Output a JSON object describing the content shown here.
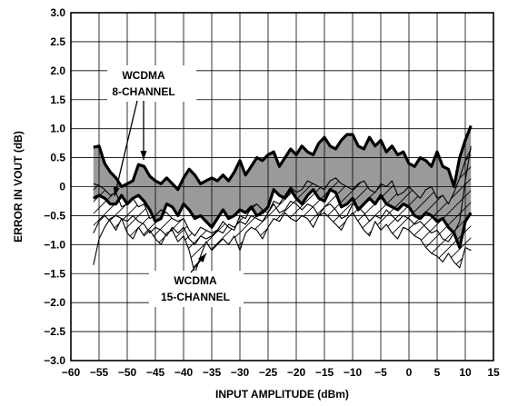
{
  "chart_data": {
    "type": "line",
    "title": "",
    "xlabel": "INPUT AMPLITUDE (dBm)",
    "ylabel": "ERROR IN VOUT (dB)",
    "xlim": [
      -60,
      15
    ],
    "ylim": [
      -3.0,
      3.0
    ],
    "x_ticks": [
      -60,
      -55,
      -50,
      -45,
      -40,
      -35,
      -30,
      -25,
      -20,
      -15,
      -10,
      -5,
      0,
      5,
      10,
      15
    ],
    "x_tick_labels": [
      "−60",
      "−55",
      "−50",
      "−45",
      "−40",
      "−35",
      "−30",
      "−25",
      "−20",
      "−15",
      "−10",
      "−5",
      "0",
      "5",
      "10",
      "15"
    ],
    "y_ticks": [
      3.0,
      2.5,
      2.0,
      1.5,
      1.0,
      0.5,
      0,
      -0.5,
      -1.0,
      -1.5,
      -2.0,
      -2.5,
      -3.0
    ],
    "y_tick_labels": [
      "3.0",
      "2.5",
      "2.0",
      "1.5",
      "1.0",
      "0.5",
      "0",
      "−0.5",
      "−1.0",
      "−1.5",
      "−2.0",
      "−2.5",
      "−3.0"
    ],
    "grid": true,
    "legend": "none",
    "annotations": [
      {
        "line1": "WCDMA",
        "line2": "8-CHANNEL"
      },
      {
        "line1": "WCDMA",
        "line2": "15-CHANNEL"
      }
    ],
    "series": [
      {
        "group": "8-channel",
        "style": "thick",
        "x": [
          -56,
          -55,
          -54,
          -53,
          -52,
          -51,
          -50,
          -49,
          -48,
          -47,
          -46,
          -45,
          -44,
          -43,
          -42,
          -41,
          -40,
          -39,
          -38,
          -37,
          -36,
          -35,
          -34,
          -33,
          -32,
          -31,
          -30,
          -29,
          -28,
          -27,
          -26,
          -25,
          -24,
          -23,
          -22,
          -21,
          -20,
          -19,
          -18,
          -17,
          -16,
          -15,
          -14,
          -13,
          -12,
          -11,
          -10,
          -9,
          -8,
          -7,
          -6,
          -5,
          -4,
          -3,
          -2,
          -1,
          0,
          1,
          2,
          3,
          4,
          5,
          6,
          7,
          8,
          9,
          10,
          11
        ],
        "y": [
          0.68,
          0.7,
          0.4,
          0.25,
          0.15,
          0.0,
          0.05,
          0.1,
          0.38,
          0.35,
          0.18,
          0.1,
          0.05,
          0.15,
          0.05,
          -0.05,
          0.15,
          0.3,
          0.2,
          0.05,
          0.1,
          0.15,
          0.1,
          0.2,
          0.1,
          0.25,
          0.45,
          0.2,
          0.35,
          0.5,
          0.45,
          0.55,
          0.6,
          0.35,
          0.5,
          0.65,
          0.55,
          0.7,
          0.6,
          0.55,
          0.75,
          0.85,
          0.7,
          0.65,
          0.8,
          0.9,
          0.9,
          0.7,
          0.65,
          0.85,
          0.7,
          0.8,
          0.6,
          0.7,
          0.55,
          0.6,
          0.4,
          0.35,
          0.5,
          0.45,
          0.35,
          0.6,
          0.35,
          0.3,
          0.0,
          0.5,
          0.8,
          1.05
        ]
      },
      {
        "group": "8-channel",
        "style": "thick",
        "x": [
          -56,
          -55,
          -54,
          -53,
          -52,
          -51,
          -50,
          -49,
          -48,
          -47,
          -46,
          -45,
          -44,
          -43,
          -42,
          -41,
          -40,
          -39,
          -38,
          -37,
          -36,
          -35,
          -34,
          -33,
          -32,
          -31,
          -30,
          -29,
          -28,
          -27,
          -26,
          -25,
          -24,
          -23,
          -22,
          -21,
          -20,
          -19,
          -18,
          -17,
          -16,
          -15,
          -14,
          -13,
          -12,
          -11,
          -10,
          -9,
          -8,
          -7,
          -6,
          -5,
          -4,
          -3,
          -2,
          -1,
          0,
          1,
          2,
          3,
          4,
          5,
          6,
          7,
          8,
          9,
          10,
          11
        ],
        "y": [
          -0.2,
          -0.15,
          -0.2,
          -0.3,
          -0.3,
          -0.15,
          -0.3,
          -0.2,
          -0.15,
          -0.25,
          -0.4,
          -0.6,
          -0.55,
          -0.3,
          -0.35,
          -0.5,
          -0.3,
          -0.4,
          -0.55,
          -0.5,
          -0.6,
          -0.7,
          -0.55,
          -0.4,
          -0.55,
          -0.5,
          -0.4,
          -0.45,
          -0.35,
          -0.5,
          -0.45,
          -0.35,
          -0.05,
          -0.15,
          -0.2,
          -0.05,
          -0.2,
          -0.3,
          -0.15,
          -0.05,
          -0.2,
          -0.25,
          -0.05,
          -0.1,
          -0.35,
          -0.3,
          -0.2,
          -0.4,
          -0.3,
          -0.2,
          -0.3,
          -0.15,
          -0.3,
          -0.35,
          -0.4,
          -0.3,
          -0.35,
          -0.5,
          -0.55,
          -0.45,
          -0.5,
          -0.6,
          -0.55,
          -0.7,
          -0.8,
          -1.05,
          -0.6,
          -0.45
        ]
      },
      {
        "group": "15-channel",
        "style": "thin",
        "x": [
          -56,
          -55,
          -54,
          -53,
          -52,
          -51,
          -50,
          -49,
          -48,
          -47,
          -46,
          -45,
          -44,
          -43,
          -42,
          -41,
          -40,
          -39,
          -38,
          -37,
          -36,
          -35,
          -34,
          -33,
          -32,
          -31,
          -30,
          -29,
          -28,
          -27,
          -26,
          -25,
          -24,
          -23,
          -22,
          -21,
          -20,
          -19,
          -18,
          -17,
          -16,
          -15,
          -14,
          -13,
          -12,
          -11,
          -10,
          -9,
          -8,
          -7,
          -6,
          -5,
          -4,
          -3,
          -2,
          -1,
          0,
          1,
          2,
          3,
          4,
          5,
          6,
          7,
          8,
          9,
          10,
          11
        ],
        "y": [
          0.05,
          0.02,
          -0.05,
          -0.15,
          -0.1,
          -0.35,
          -0.3,
          -0.2,
          -0.35,
          -0.3,
          -0.55,
          -0.5,
          -0.4,
          -0.45,
          -0.55,
          -0.6,
          -0.55,
          -0.75,
          -0.85,
          -0.7,
          -0.75,
          -0.8,
          -0.75,
          -0.6,
          -0.7,
          -0.75,
          -0.5,
          -0.55,
          -0.35,
          -0.3,
          -0.4,
          -0.45,
          -0.25,
          -0.3,
          -0.15,
          0.0,
          -0.1,
          -0.05,
          0.1,
          0.05,
          0.0,
          -0.05,
          0.1,
          0.15,
          0.05,
          0.0,
          -0.05,
          0.05,
          0.1,
          -0.05,
          -0.1,
          0.05,
          0.0,
          0.1,
          -0.15,
          -0.1,
          0.0,
          -0.1,
          -0.2,
          -0.05,
          0.0,
          -0.2,
          -0.15,
          -0.3,
          -0.1,
          0.15,
          0.45,
          0.65
        ]
      },
      {
        "group": "15-channel",
        "style": "thin",
        "x": [
          -56,
          -55,
          -54,
          -53,
          -52,
          -51,
          -50,
          -49,
          -48,
          -47,
          -46,
          -45,
          -44,
          -43,
          -42,
          -41,
          -40,
          -39,
          -38,
          -37,
          -36,
          -35,
          -34,
          -33,
          -32,
          -31,
          -30,
          -29,
          -28,
          -27,
          -26,
          -25,
          -24,
          -23,
          -22,
          -21,
          -20,
          -19,
          -18,
          -17,
          -16,
          -15,
          -14,
          -13,
          -12,
          -11,
          -10,
          -9,
          -8,
          -7,
          -6,
          -5,
          -4,
          -3,
          -2,
          -1,
          0,
          1,
          2,
          3,
          4,
          5,
          6,
          7,
          8,
          9,
          10,
          11
        ],
        "y": [
          -0.8,
          -0.6,
          -0.5,
          -0.6,
          -0.75,
          -0.55,
          -0.8,
          -0.9,
          -0.7,
          -0.85,
          -0.75,
          -0.9,
          -1.0,
          -0.8,
          -0.75,
          -0.95,
          -0.85,
          -1.1,
          -1.5,
          -1.2,
          -0.95,
          -1.1,
          -1.0,
          -0.9,
          -1.0,
          -0.85,
          -1.1,
          -0.8,
          -0.7,
          -0.75,
          -0.9,
          -0.7,
          -0.55,
          -0.6,
          -0.45,
          -0.55,
          -0.6,
          -0.5,
          -0.55,
          -0.7,
          -0.5,
          -0.45,
          -0.55,
          -0.65,
          -0.75,
          -0.55,
          -0.45,
          -0.6,
          -0.75,
          -0.85,
          -0.6,
          -0.75,
          -0.65,
          -0.8,
          -0.9,
          -0.7,
          -0.75,
          -0.85,
          -0.9,
          -1.05,
          -1.15,
          -1.2,
          -1.3,
          -1.15,
          -1.3,
          -1.4,
          -1.05,
          -1.1
        ]
      },
      {
        "group": "15-channel",
        "style": "thin",
        "x": [
          -56,
          -55,
          -54,
          -53,
          -52,
          -51,
          -50,
          -49,
          -48,
          -47,
          -46,
          -45,
          -44,
          -43,
          -42,
          -41,
          -40,
          -39,
          -38,
          -37,
          -36,
          -35,
          -34,
          -33,
          -32,
          -31,
          -30,
          -29,
          -28,
          -27,
          -26,
          -25,
          -24,
          -23,
          -22,
          -21,
          -20,
          -19,
          -18,
          -17,
          -16,
          -15,
          -14,
          -13,
          -12,
          -11,
          -10,
          -9,
          -8,
          -7,
          -6,
          -5,
          -4,
          -3,
          -2,
          -1,
          0,
          1,
          2,
          3,
          4,
          5,
          6,
          7,
          8,
          9,
          10,
          11
        ],
        "y": [
          -1.35,
          -0.9,
          -0.7,
          -0.55,
          -0.5,
          -0.55,
          -0.6,
          -0.5,
          -0.6,
          -0.65,
          -0.8,
          -0.7,
          -0.75,
          -0.85,
          -0.7,
          -0.8,
          -0.7,
          -0.9,
          -1.0,
          -0.85,
          -0.9,
          -0.85,
          -0.75,
          -0.8,
          -0.65,
          -0.7,
          -0.6,
          -0.65,
          -0.5,
          -0.55,
          -0.6,
          -0.45,
          -0.3,
          -0.45,
          -0.4,
          -0.25,
          -0.3,
          -0.4,
          -0.3,
          -0.35,
          -0.5,
          -0.35,
          -0.3,
          -0.4,
          -0.55,
          -0.5,
          -0.3,
          -0.35,
          -0.45,
          -0.6,
          -0.5,
          -0.55,
          -0.4,
          -0.5,
          -0.6,
          -0.5,
          -0.55,
          -0.65,
          -0.6,
          -0.7,
          -0.8,
          -0.75,
          -0.9,
          -0.95,
          -0.8,
          -0.6,
          0.1,
          0.7
        ]
      }
    ]
  }
}
